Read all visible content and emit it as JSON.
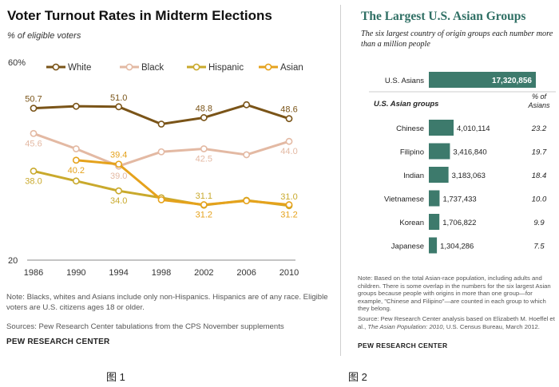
{
  "figure1": {
    "title": "Voter Turnout Rates in Midterm Elections",
    "subtitle": "% of eligible voters",
    "caption": "图 1",
    "note": "Note: Blacks, whites and Asians include only non-Hispanics. Hispanics are of any race. Eligible voters are U.S. citizens ages 18 or older.",
    "source": "Sources: Pew Research Center tabulations from the CPS November supplements",
    "brand": "PEW RESEARCH CENTER"
  },
  "figure2": {
    "title": "The Largest U.S. Asian Groups",
    "subtitle": "The six largest country of origin groups each number more than a million people",
    "caption": "图 2",
    "note": "Note: Based on the total Asian-race population, including adults and children. There is some overlap in the numbers for the six largest Asian groups because people with origins in more than one group—for example, \"Chinese and Filipino\"—are counted in each group to which they belong.",
    "source_prefix": "Source: Pew Research Center analysis based on Elizabeth M. Hoeffel et al., ",
    "source_title": "The Asian Population: 2010",
    "source_suffix": ", U.S. Census Bureau, March 2012.",
    "brand": "PEW RESEARCH CENTER"
  },
  "chart_data": [
    {
      "type": "line",
      "title": "Voter Turnout Rates in Midterm Elections",
      "ylabel": "% of eligible voters",
      "xlabel": "",
      "x": [
        1986,
        1990,
        1994,
        1998,
        2002,
        2006,
        2010
      ],
      "ylim": [
        20,
        60
      ],
      "yticks": [
        {
          "v": 60,
          "label": "60%"
        },
        {
          "v": 20,
          "label": "20"
        }
      ],
      "legend_position": "top",
      "series": [
        {
          "name": "White",
          "color": "#7a5418",
          "x": [
            1986,
            1990,
            1994,
            1998,
            2002,
            2006,
            2010
          ],
          "values": [
            50.7,
            51.1,
            51.0,
            47.5,
            48.8,
            51.4,
            48.6
          ]
        },
        {
          "name": "Black",
          "color": "#e3b9a3",
          "x": [
            1986,
            1990,
            1994,
            1998,
            2002,
            2006,
            2010
          ],
          "values": [
            45.6,
            42.5,
            39.0,
            41.9,
            42.5,
            41.3,
            44.0
          ]
        },
        {
          "name": "Hispanic",
          "color": "#c9a92c",
          "x": [
            1986,
            1990,
            1994,
            1998,
            2002,
            2006,
            2010
          ],
          "values": [
            38.0,
            36.0,
            34.0,
            32.6,
            31.1,
            32.1,
            31.0
          ]
        },
        {
          "name": "Asian",
          "color": "#e5a21c",
          "x": [
            1990,
            1994,
            1998,
            2002,
            2006,
            2010
          ],
          "values": [
            40.2,
            39.4,
            32.2,
            31.2,
            32.0,
            31.2
          ]
        }
      ],
      "data_labels": [
        {
          "series": "White",
          "x": 1986,
          "text": "50.7",
          "pos": "above"
        },
        {
          "series": "White",
          "x": 1994,
          "text": "51.0",
          "pos": "above"
        },
        {
          "series": "White",
          "x": 2002,
          "text": "48.8",
          "pos": "above"
        },
        {
          "series": "White",
          "x": 2010,
          "text": "48.6",
          "pos": "above"
        },
        {
          "series": "Black",
          "x": 1986,
          "text": "45.6",
          "pos": "below"
        },
        {
          "series": "Black",
          "x": 1994,
          "text": "39.0",
          "pos": "below"
        },
        {
          "series": "Black",
          "x": 2002,
          "text": "42.5",
          "pos": "below"
        },
        {
          "series": "Black",
          "x": 2010,
          "text": "44.0",
          "pos": "below"
        },
        {
          "series": "Hispanic",
          "x": 1986,
          "text": "38.0",
          "pos": "below"
        },
        {
          "series": "Hispanic",
          "x": 1994,
          "text": "34.0",
          "pos": "below"
        },
        {
          "series": "Hispanic",
          "x": 2002,
          "text": "31.1",
          "pos": "above"
        },
        {
          "series": "Hispanic",
          "x": 2010,
          "text": "31.0",
          "pos": "above"
        },
        {
          "series": "Asian",
          "x": 1990,
          "text": "40.2",
          "pos": "below"
        },
        {
          "series": "Asian",
          "x": 1994,
          "text": "39.4",
          "pos": "above"
        },
        {
          "series": "Asian",
          "x": 2002,
          "text": "31.2",
          "pos": "below"
        },
        {
          "series": "Asian",
          "x": 2010,
          "text": "31.2",
          "pos": "below"
        }
      ]
    },
    {
      "type": "bar",
      "title": "The Largest U.S. Asian Groups",
      "orientation": "horizontal",
      "bar_color": "#3d7a6c",
      "total": {
        "category": "U.S. Asians",
        "value": 17320856,
        "label": "17,320,856"
      },
      "group_header": "U.S. Asian groups",
      "pct_header": "% of Asians",
      "categories": [
        "Chinese",
        "Filipino",
        "Indian",
        "Vietnamese",
        "Korean",
        "Japanese"
      ],
      "values": [
        4010114,
        3416840,
        3183063,
        1737433,
        1706822,
        1304286
      ],
      "value_labels": [
        "4,010,114",
        "3,416,840",
        "3,183,063",
        "1,737,433",
        "1,706,822",
        "1,304,286"
      ],
      "percent_labels": [
        "23.2",
        "19.7",
        "18.4",
        "10.0",
        "9.9",
        "7.5"
      ],
      "xlim": [
        0,
        17320856
      ]
    }
  ]
}
